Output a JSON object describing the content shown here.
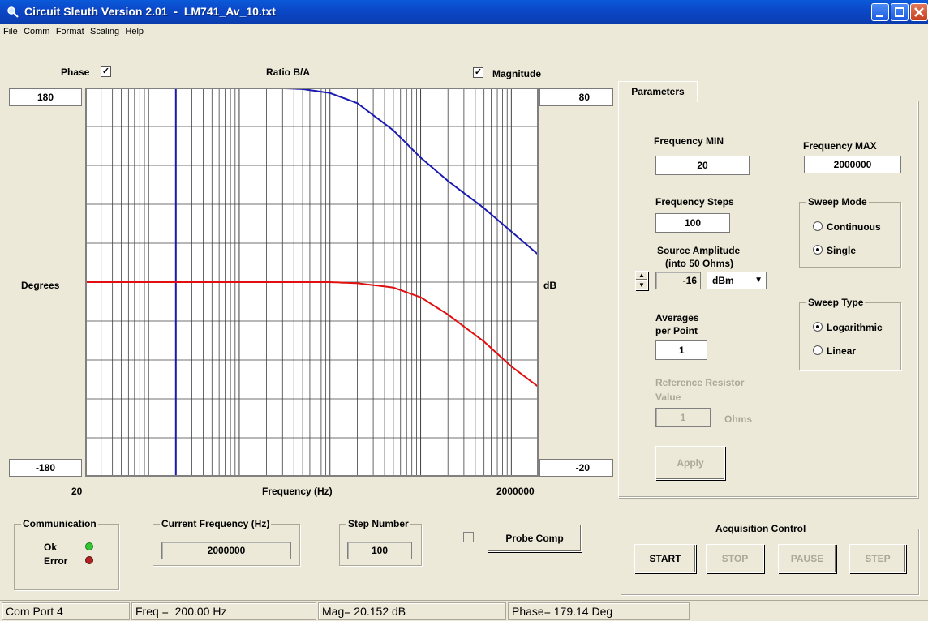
{
  "window": {
    "title": "Circuit Sleuth Version 2.01  -  LM741_Av_10.txt"
  },
  "menu": [
    "File",
    "Comm",
    "Format",
    "Scaling",
    "Help"
  ],
  "graph": {
    "phase_label": "Phase",
    "phase_checked": true,
    "ratio_label": "Ratio B/A",
    "magnitude_label": "Magnitude",
    "magnitude_checked": true,
    "left_top": "180",
    "left_bottom": "-180",
    "left_axis_label": "Degrees",
    "right_top": "80",
    "right_bottom": "-20",
    "right_axis_label": "dB",
    "x_min": "20",
    "x_max": "2000000",
    "x_axis_label": "Frequency (Hz)",
    "colors": {
      "magnitude": "#1a1ab0",
      "phase": "#e01010"
    }
  },
  "chart_data": {
    "type": "line",
    "xlabel": "Frequency (Hz)",
    "x_scale": "log",
    "xlim": [
      20,
      2000000
    ],
    "cursor_x": 200,
    "series": [
      {
        "name": "Magnitude",
        "axis": "right",
        "ylim": [
          -20,
          80
        ],
        "x": [
          2000,
          5000,
          10000,
          20000,
          50000,
          100000,
          200000,
          500000,
          1000000,
          2000000
        ],
        "y": [
          80,
          79.6,
          78.6,
          76,
          69,
          62,
          56,
          49,
          43,
          37
        ]
      },
      {
        "name": "Phase",
        "axis": "left",
        "ylim": [
          -180,
          180
        ],
        "x": [
          20,
          1000,
          10000,
          20000,
          50000,
          100000,
          200000,
          500000,
          1000000,
          2000000
        ],
        "y": [
          0,
          0,
          0,
          -1,
          -5,
          -14,
          -30,
          -55,
          -78,
          -97
        ]
      }
    ]
  },
  "parameters": {
    "tab_label": "Parameters",
    "freq_min_label": "Frequency MIN",
    "freq_min": "20",
    "freq_max_label": "Frequency MAX",
    "freq_max": "2000000",
    "freq_steps_label": "Frequency Steps",
    "freq_steps": "100",
    "sweep_mode_label": "Sweep Mode",
    "sweep_continuous": "Continuous",
    "sweep_single": "Single",
    "source_amp_label": "Source Amplitude",
    "source_amp_sub": "(into 50 Ohms)",
    "source_amp": "-16",
    "amp_unit": "dBm",
    "averages_label1": "Averages",
    "averages_label2": "per  Point",
    "averages": "1",
    "sweep_type_label": "Sweep Type",
    "sweep_log": "Logarithmic",
    "sweep_linear": "Linear",
    "ref_res_label1": "Reference Resistor",
    "ref_res_label2": "Value",
    "ref_res": "1",
    "ref_res_unit": "Ohms",
    "apply_label": "Apply"
  },
  "bottom": {
    "communication_label": "Communication",
    "ok_label": "Ok",
    "error_label": "Error",
    "current_freq_label": "Current Frequency (Hz)",
    "current_freq": "2000000",
    "step_number_label": "Step Number",
    "step_number": "100",
    "probe_comp_label": "Probe Comp",
    "acq_label": "Acquisition Control",
    "start_label": "START",
    "stop_label": "STOP",
    "pause_label": "PAUSE",
    "step_label": "STEP"
  },
  "status": {
    "port": "Com Port 4",
    "freq": "Freq =  200.00 Hz",
    "mag": "Mag= 20.152 dB",
    "phase": "Phase= 179.14 Deg"
  }
}
